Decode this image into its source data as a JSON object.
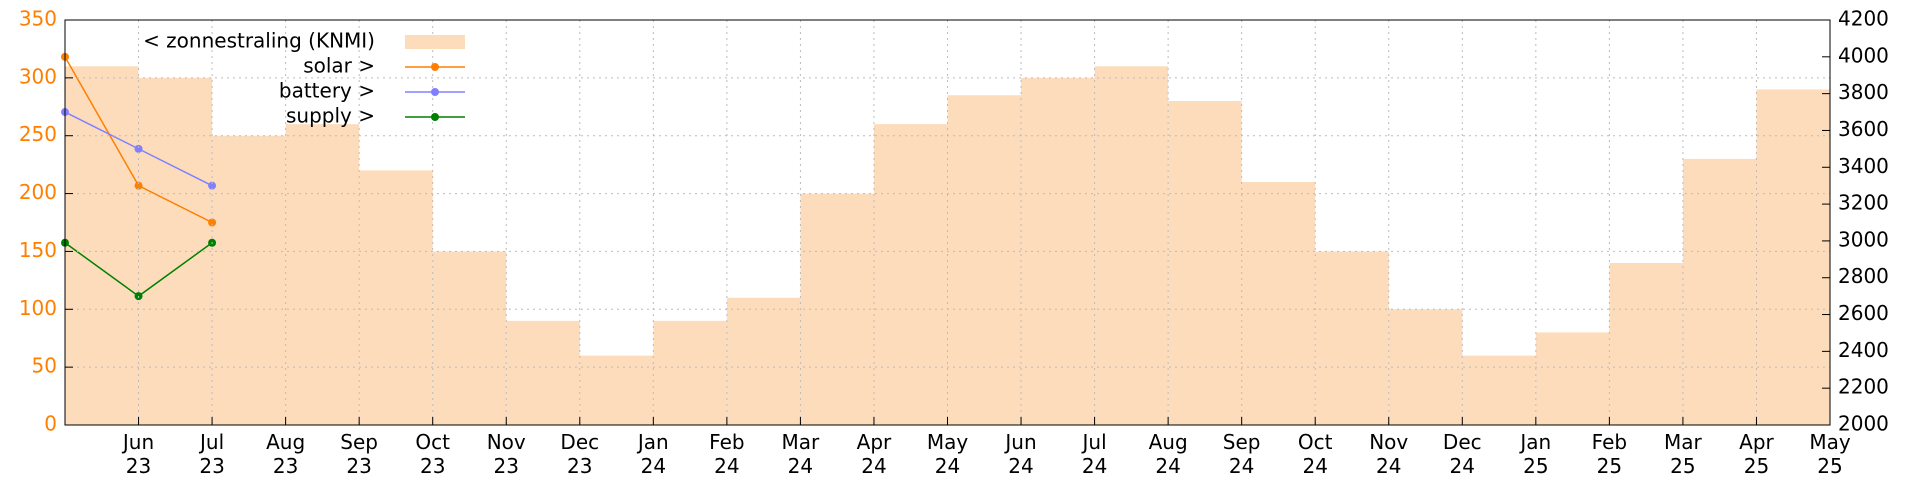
{
  "chart_data": {
    "type": "area",
    "x": [
      "2023-05",
      "2023-06",
      "2023-07",
      "2023-08",
      "2023-09",
      "2023-10",
      "2023-11",
      "2023-12",
      "2024-01",
      "2024-02",
      "2024-03",
      "2024-04",
      "2024-05",
      "2024-06",
      "2024-07",
      "2024-08",
      "2024-09",
      "2024-10",
      "2024-11",
      "2024-12",
      "2025-01",
      "2025-02",
      "2025-03",
      "2025-04"
    ],
    "xlim": [
      "2023-05",
      "2025-05"
    ],
    "xticks": [
      {
        "value": "2023-06",
        "label": "Jun\n23"
      },
      {
        "value": "2023-07",
        "label": "Jul\n23"
      },
      {
        "value": "2023-08",
        "label": "Aug\n23"
      },
      {
        "value": "2023-09",
        "label": "Sep\n23"
      },
      {
        "value": "2023-10",
        "label": "Oct\n23"
      },
      {
        "value": "2023-11",
        "label": "Nov\n23"
      },
      {
        "value": "2023-12",
        "label": "Dec\n23"
      },
      {
        "value": "2024-01",
        "label": "Jan\n24"
      },
      {
        "value": "2024-02",
        "label": "Feb\n24"
      },
      {
        "value": "2024-03",
        "label": "Mar\n24"
      },
      {
        "value": "2024-04",
        "label": "Apr\n24"
      },
      {
        "value": "2024-05",
        "label": "May\n24"
      },
      {
        "value": "2024-06",
        "label": "Jun\n24"
      },
      {
        "value": "2024-07",
        "label": "Jul\n24"
      },
      {
        "value": "2024-08",
        "label": "Aug\n24"
      },
      {
        "value": "2024-09",
        "label": "Sep\n24"
      },
      {
        "value": "2024-10",
        "label": "Oct\n24"
      },
      {
        "value": "2024-11",
        "label": "Nov\n24"
      },
      {
        "value": "2024-12",
        "label": "Dec\n24"
      },
      {
        "value": "2025-01",
        "label": "Jan\n25"
      },
      {
        "value": "2025-02",
        "label": "Feb\n25"
      },
      {
        "value": "2025-03",
        "label": "Mar\n25"
      },
      {
        "value": "2025-04",
        "label": "Apr\n25"
      },
      {
        "value": "2025-05",
        "label": "May\n25"
      }
    ],
    "ylim": [
      0,
      350
    ],
    "yticks": [
      0,
      50,
      100,
      150,
      200,
      250,
      300,
      350
    ],
    "y2lim": [
      2000,
      4200
    ],
    "y2ticks": [
      2000,
      2200,
      2400,
      2600,
      2800,
      3000,
      3200,
      3400,
      3600,
      3800,
      4000,
      4200
    ],
    "grid": true,
    "legend": "top-left",
    "series": [
      {
        "name": "< zonnestraling (KNMI)",
        "type": "area",
        "color": "#fddcbc",
        "values": [
          310,
          300,
          250,
          260,
          220,
          150,
          90,
          60,
          90,
          110,
          200,
          260,
          285,
          300,
          310,
          280,
          210,
          150,
          100,
          60,
          80,
          140,
          230,
          290
        ]
      },
      {
        "name": "solar >",
        "type": "line",
        "axis": "y2",
        "color": "#ff7f00",
        "x": [
          "2023-05",
          "2023-06",
          "2023-07"
        ],
        "values": [
          4000,
          3300,
          3100
        ]
      },
      {
        "name": "battery >",
        "type": "line",
        "axis": "y2",
        "color": "#8080ff",
        "x": [
          "2023-05",
          "2023-06",
          "2023-07"
        ],
        "values": [
          3700,
          3500,
          3300
        ]
      },
      {
        "name": "supply >",
        "type": "line",
        "axis": "y2",
        "color": "#008000",
        "x": [
          "2023-05",
          "2023-06",
          "2023-07"
        ],
        "values": [
          2990,
          2700,
          2990
        ]
      }
    ]
  }
}
